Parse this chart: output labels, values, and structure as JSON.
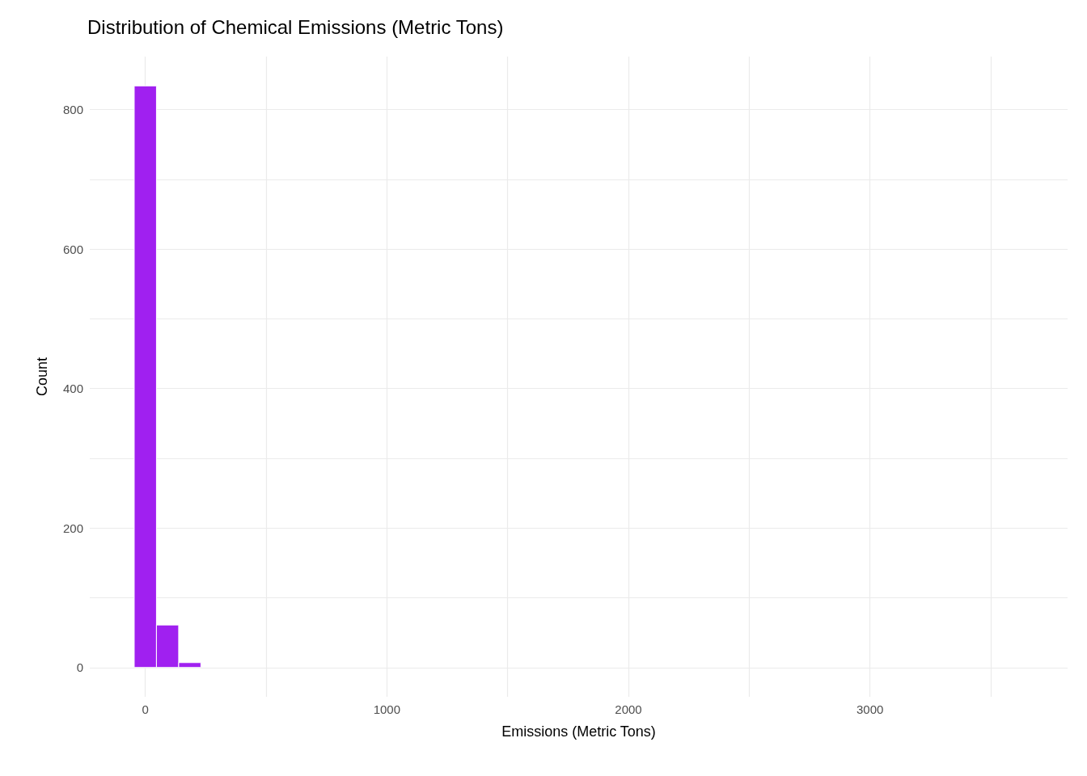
{
  "chart_data": {
    "type": "histogram",
    "title": "Distribution of Chemical Emissions (Metric Tons)",
    "xlabel": "Emissions (Metric Tons)",
    "ylabel": "Count",
    "bins": [
      -46,
      46,
      138,
      230,
      322,
      414,
      506,
      598,
      690,
      782,
      874,
      966,
      1058,
      1150,
      1242,
      1334,
      1426,
      1518,
      1610,
      1702,
      1794,
      1886,
      1978,
      2070,
      2162,
      2254,
      2346,
      2438,
      2530,
      2622,
      2714,
      2806,
      2898,
      2990,
      3082,
      3174,
      3266,
      3358,
      3450,
      3542,
      3634
    ],
    "values": [
      834,
      61,
      7,
      0,
      0,
      0,
      0,
      0,
      0,
      0,
      0,
      0,
      0,
      0,
      0,
      0,
      0,
      0,
      0,
      0,
      0,
      0,
      0,
      0,
      0,
      0,
      0,
      0,
      0,
      0,
      0,
      0,
      0,
      0,
      0,
      0,
      0,
      0,
      0,
      0
    ],
    "color": "#a020f0",
    "xlim": [
      -230,
      3818
    ],
    "xticks": [
      0,
      {
        "value": 500,
        "label": null
      },
      1000,
      {
        "value": 1500,
        "label": null
      },
      2000,
      {
        "value": 2500,
        "label": null
      },
      3000,
      {
        "value": 3500,
        "label": null
      }
    ],
    "ylim": [
      -42,
      876
    ],
    "yticks": [
      0,
      {
        "value": 100,
        "label": null
      },
      200,
      {
        "value": 300,
        "label": null
      },
      400,
      {
        "value": 500,
        "label": null
      },
      600,
      {
        "value": 700,
        "label": null
      },
      800
    ],
    "grid": true
  }
}
